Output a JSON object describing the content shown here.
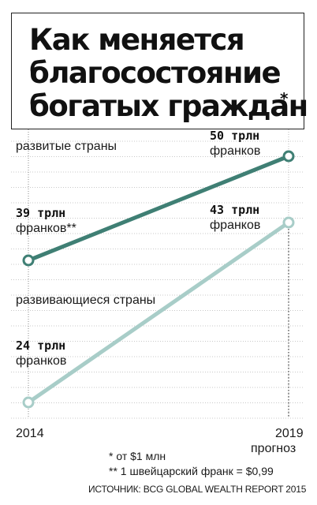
{
  "title": {
    "line1": "Как меняется",
    "line2": "благосостояние",
    "line3": "богатых граждан",
    "asterisk": "*"
  },
  "colors": {
    "developed": "#3f7f74",
    "developing": "#a8cdc8",
    "grid": "#c8c8c8",
    "marker_fill": "#ffffff"
  },
  "chart_data": {
    "type": "line",
    "x": [
      "2014",
      "2019"
    ],
    "x_tick_labels": [
      "2014",
      "2019"
    ],
    "x_sub_label": "прогноз",
    "unit": "трлн франков",
    "series": [
      {
        "name": "развитые страны",
        "values": [
          39,
          50
        ],
        "data_labels": [
          {
            "value": "39 трлн",
            "unit": "франков**"
          },
          {
            "value": "50 трлн",
            "unit": "франков"
          }
        ]
      },
      {
        "name": "развивающиеся страны",
        "values": [
          24,
          43
        ],
        "data_labels": [
          {
            "value": "24 трлн",
            "unit": "франков"
          },
          {
            "value": "43 трлн",
            "unit": "франков"
          }
        ]
      }
    ],
    "grid": true,
    "ylim": [
      22,
      52
    ]
  },
  "footnotes": {
    "note1": "* от $1 млн",
    "note2": "** 1 швейцарский франк = $0,99",
    "source": "ИСТОЧНИК: BCG GLOBAL WEALTH REPORT 2015"
  }
}
